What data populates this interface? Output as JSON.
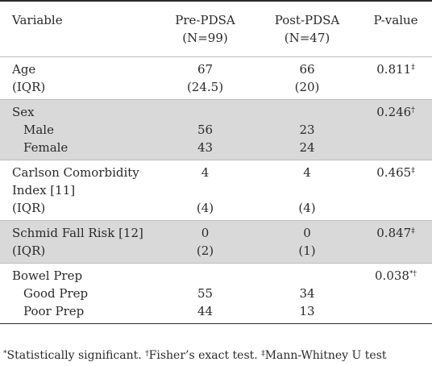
{
  "header": {
    "variable": "Variable",
    "pre_line1": "Pre-PDSA",
    "pre_line2": "(N=99)",
    "post_line1": "Post-PDSA",
    "post_line2": "(N=47)",
    "pvalue": "P-value"
  },
  "rows": {
    "age": {
      "label": "Age",
      "sub": "(IQR)",
      "pre": "67",
      "pre_sub": "(24.5)",
      "post": "66",
      "post_sub": "(20)",
      "p": "0.811",
      "p_mark": "‡"
    },
    "sex": {
      "label": "Sex",
      "male": "Male",
      "female": "Female",
      "pre_male": "56",
      "pre_female": "43",
      "post_male": "23",
      "post_female": "24",
      "p": "0.246",
      "p_mark": "†"
    },
    "ccomorb": {
      "label1": "Carlson Comorbidity",
      "label2": "Index [11]",
      "sub": "(IQR)",
      "pre": "4",
      "pre_sub": "(4)",
      "post": "4",
      "post_sub": "(4)",
      "p": "0.465",
      "p_mark": "‡"
    },
    "fall": {
      "label": "Schmid Fall Risk [12]",
      "sub": "(IQR)",
      "pre": "0",
      "pre_sub": "(2)",
      "post": "0",
      "post_sub": "(1)",
      "p": "0.847",
      "p_mark": "‡"
    },
    "bowel": {
      "label": "Bowel Prep",
      "good": "Good Prep",
      "poor": "Poor Prep",
      "pre_good": "55",
      "pre_poor": "44",
      "post_good": "34",
      "post_poor": "13",
      "p": "0.038",
      "p_mark": "*†"
    }
  },
  "footnote": {
    "star_mark": "*",
    "star_text": "Statistically significant. ",
    "dagger_mark": "†",
    "dagger_text": "Fisher’s exact test. ",
    "ddagger_mark": "‡",
    "ddagger_text": "Mann-Whitney U test"
  }
}
